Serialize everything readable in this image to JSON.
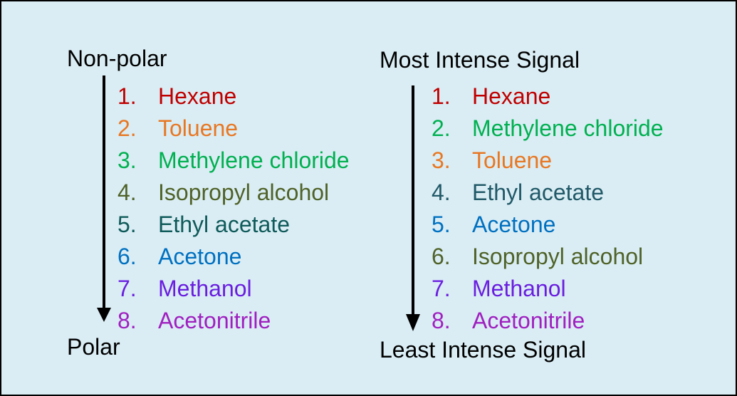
{
  "left_panel": {
    "top_label": "Non-polar",
    "bottom_label": "Polar",
    "items": [
      {
        "num": "1.",
        "name": "Hexane",
        "color": "#c00000"
      },
      {
        "num": "2.",
        "name": "Toluene",
        "color": "#e87722"
      },
      {
        "num": "3.",
        "name": "Methylene chloride",
        "color": "#00b050"
      },
      {
        "num": "4.",
        "name": "Isopropyl alcohol",
        "color": "#4f6228"
      },
      {
        "num": "5.",
        "name": "Ethyl acetate",
        "color": "#0f5a5a"
      },
      {
        "num": "6.",
        "name": "Acetone",
        "color": "#0070c0"
      },
      {
        "num": "7.",
        "name": "Methanol",
        "color": "#6a1ee0"
      },
      {
        "num": "8.",
        "name": "Acetonitrile",
        "color": "#a020c0"
      }
    ]
  },
  "right_panel": {
    "top_label": "Most Intense Signal",
    "bottom_label": "Least Intense Signal",
    "items": [
      {
        "num": "1.",
        "name": "Hexane",
        "color": "#c00000"
      },
      {
        "num": "2.",
        "name": "Methylene chloride",
        "color": "#00b050"
      },
      {
        "num": "3.",
        "name": "Toluene",
        "color": "#e87722"
      },
      {
        "num": "4.",
        "name": "Ethyl acetate",
        "color": "#215968"
      },
      {
        "num": "5.",
        "name": "Acetone",
        "color": "#0070c0"
      },
      {
        "num": "6.",
        "name": "Isopropyl alcohol",
        "color": "#4f6228"
      },
      {
        "num": "7.",
        "name": "Methanol",
        "color": "#6a1ee0"
      },
      {
        "num": "8.",
        "name": "Acetonitrile",
        "color": "#a020c0"
      }
    ]
  }
}
